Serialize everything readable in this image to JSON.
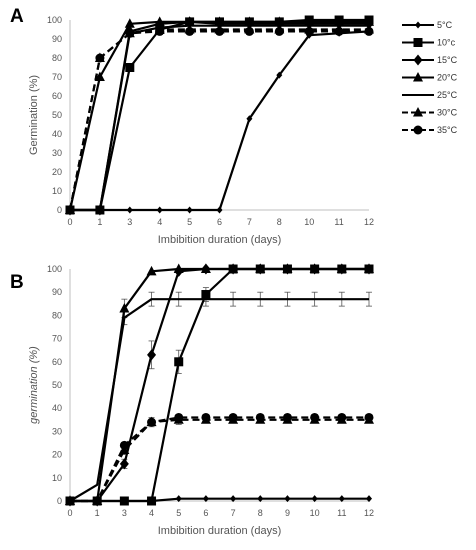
{
  "legend": {
    "entries": [
      {
        "label": "5°C",
        "style": "solid",
        "marker": "diamond-small"
      },
      {
        "label": "10°c",
        "style": "solid",
        "marker": "square"
      },
      {
        "label": "15°C",
        "style": "solid",
        "marker": "diamond"
      },
      {
        "label": "20°C",
        "style": "solid",
        "marker": "triangle"
      },
      {
        "label": "25°C",
        "style": "solid",
        "marker": "none"
      },
      {
        "label": "30°C",
        "style": "dashed",
        "marker": "triangle"
      },
      {
        "label": "35°C",
        "style": "dashed",
        "marker": "circle"
      }
    ],
    "placement": "right"
  },
  "chart_data": [
    {
      "panel": "A",
      "type": "line",
      "x_categories": [
        "0",
        "1",
        "3",
        "4",
        "5",
        "6",
        "7",
        "8",
        "10",
        "11",
        "12"
      ],
      "xlabel": "Imbibition duration (days)",
      "ylabel": "Germination (%)",
      "ylim": [
        0,
        100
      ],
      "yticks": [
        0,
        10,
        20,
        30,
        40,
        50,
        60,
        70,
        80,
        90,
        100
      ],
      "grid": false,
      "series": [
        {
          "name": "5°C",
          "values": [
            0,
            0,
            0,
            0,
            0,
            0,
            48,
            71,
            92,
            93,
            94
          ]
        },
        {
          "name": "10°c",
          "values": [
            0,
            0,
            75,
            95,
            99,
            99,
            99,
            99,
            100,
            100,
            100
          ]
        },
        {
          "name": "15°C",
          "values": [
            0,
            0,
            94,
            98,
            99,
            98,
            98,
            98,
            98,
            98,
            98
          ]
        },
        {
          "name": "20°C",
          "values": [
            0,
            70,
            98,
            99,
            99,
            99,
            99,
            99,
            99,
            99,
            99
          ]
        },
        {
          "name": "25°C",
          "values": [
            0,
            0,
            93,
            96,
            97,
            97,
            97,
            97,
            97,
            97,
            97
          ]
        },
        {
          "name": "30°C",
          "values": [
            0,
            80,
            93,
            95,
            95,
            95,
            95,
            95,
            95,
            95,
            95
          ]
        },
        {
          "name": "35°C",
          "values": [
            0,
            80,
            93,
            94,
            94,
            94,
            94,
            94,
            94,
            94,
            94
          ]
        }
      ]
    },
    {
      "panel": "B",
      "type": "line",
      "x_categories": [
        "0",
        "1",
        "3",
        "4",
        "5",
        "6",
        "7",
        "8",
        "9",
        "10",
        "11",
        "12"
      ],
      "xlabel": "Imbibition duration (days)",
      "ylabel": "germination (%)",
      "ylim": [
        0,
        100
      ],
      "yticks": [
        0,
        10,
        20,
        30,
        40,
        50,
        60,
        70,
        80,
        90,
        100
      ],
      "grid": false,
      "series": [
        {
          "name": "5°C",
          "values": [
            0,
            0,
            0,
            0,
            1,
            1,
            1,
            1,
            1,
            1,
            1,
            1
          ]
        },
        {
          "name": "10°c",
          "values": [
            0,
            0,
            0,
            0,
            60,
            89,
            100,
            100,
            100,
            100,
            100,
            100
          ]
        },
        {
          "name": "15°C",
          "values": [
            0,
            0,
            16,
            63,
            99,
            100,
            100,
            100,
            100,
            100,
            100,
            100
          ]
        },
        {
          "name": "20°C",
          "values": [
            0,
            0,
            83,
            99,
            100,
            100,
            100,
            100,
            100,
            100,
            100,
            100
          ]
        },
        {
          "name": "25°C",
          "values": [
            0,
            7,
            79,
            87,
            87,
            87,
            87,
            87,
            87,
            87,
            87,
            87
          ]
        },
        {
          "name": "30°C",
          "values": [
            0,
            0,
            22,
            34,
            35,
            35,
            35,
            35,
            35,
            35,
            35,
            35
          ]
        },
        {
          "name": "35°C",
          "values": [
            0,
            0,
            24,
            34,
            36,
            36,
            36,
            36,
            36,
            36,
            36,
            36
          ]
        }
      ],
      "error_bars": [
        {
          "series": "25°C",
          "errors": [
            0,
            0,
            3,
            3,
            3,
            3,
            3,
            3,
            3,
            3,
            3,
            3
          ]
        },
        {
          "series": "10°c",
          "errors": [
            0,
            0,
            0,
            0,
            5,
            3,
            0,
            0,
            0,
            0,
            0,
            0
          ]
        },
        {
          "series": "15°C",
          "errors": [
            0,
            0,
            2,
            6,
            0,
            0,
            0,
            0,
            0,
            0,
            0,
            0
          ]
        },
        {
          "series": "20°C",
          "errors": [
            0,
            0,
            4,
            0,
            0,
            0,
            0,
            0,
            0,
            0,
            0,
            0
          ]
        },
        {
          "series": "30°C",
          "errors": [
            0,
            0,
            2,
            2,
            2,
            1,
            1,
            1,
            1,
            1,
            1,
            1
          ]
        }
      ]
    }
  ]
}
